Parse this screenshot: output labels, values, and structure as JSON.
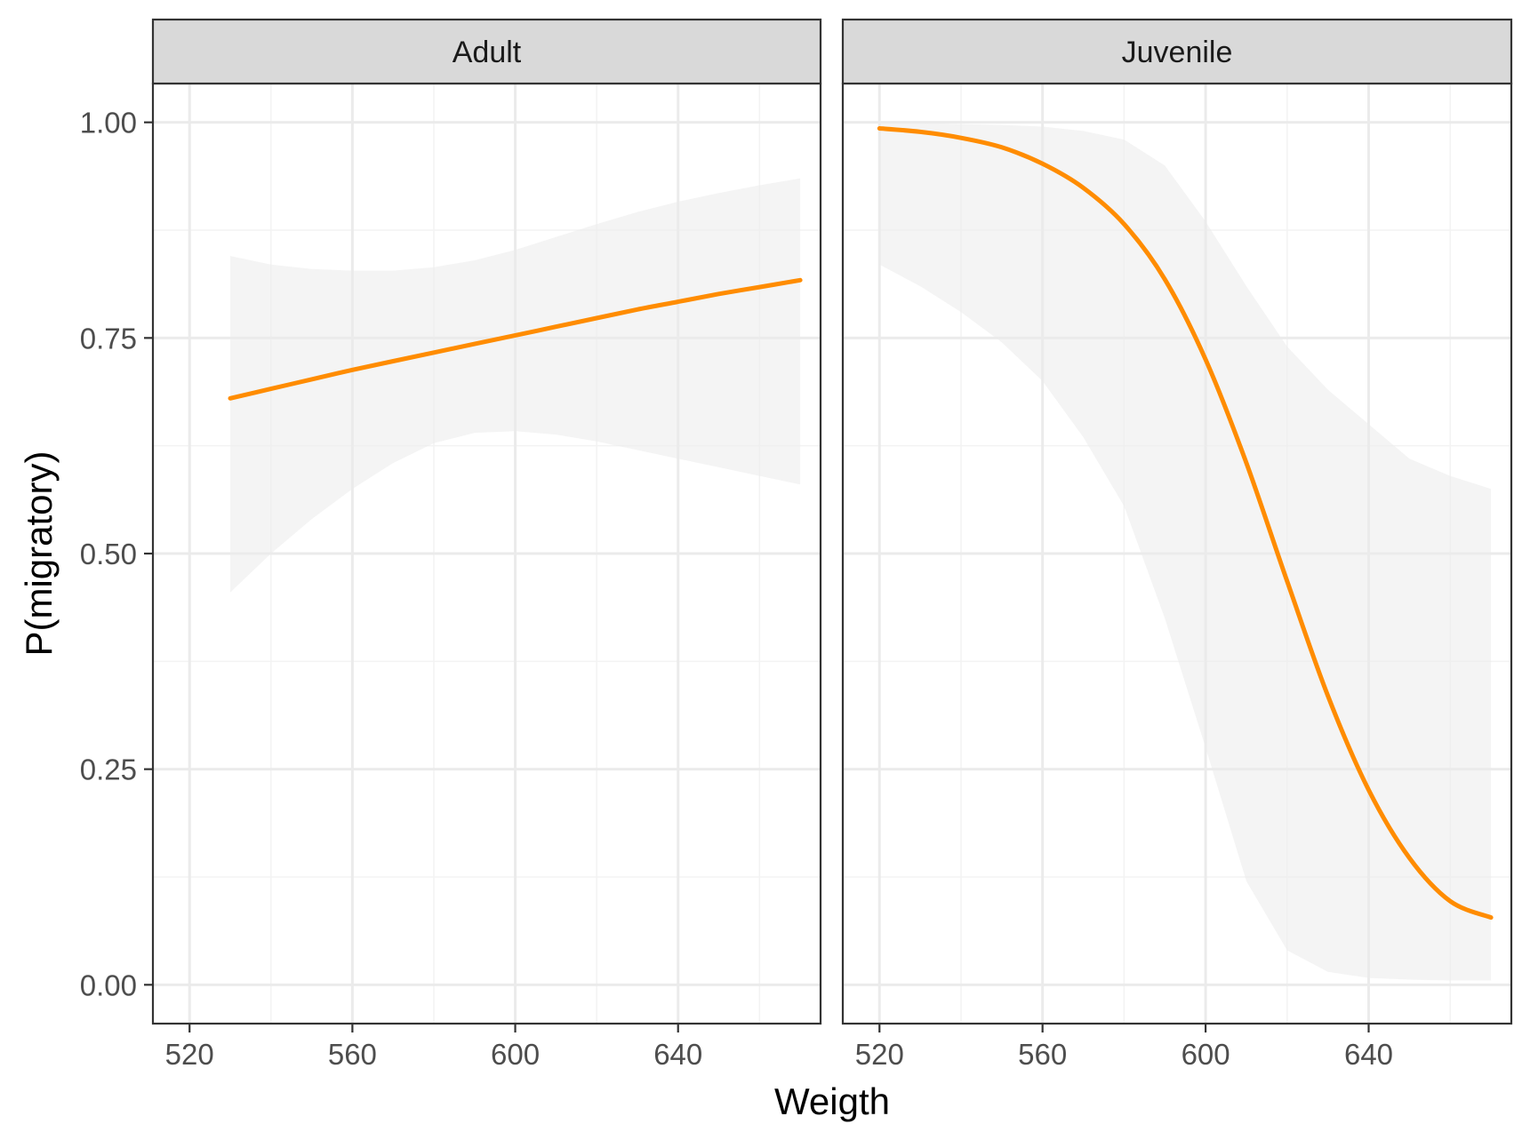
{
  "chart_data": {
    "type": "line",
    "xlabel": "Weigth",
    "ylabel": "P(migratory)",
    "xlim": [
      511,
      675
    ],
    "ylim": [
      -0.045,
      1.045
    ],
    "x_ticks": [
      520,
      560,
      600,
      640
    ],
    "y_ticks": [
      0.0,
      0.25,
      0.5,
      0.75,
      1.0
    ],
    "y_tick_labels": [
      "0.00",
      "0.25",
      "0.50",
      "0.75",
      "1.00"
    ],
    "grid": true,
    "legend": "none",
    "colors": {
      "line": "#ff8c00",
      "ribbon": "#ebebeb",
      "strip_bg": "#d9d9d9",
      "panel_border": "#333333",
      "grid_major": "#ebebeb",
      "grid_minor": "#f3f3f3",
      "axis_text": "#4d4d4d"
    },
    "panels": [
      {
        "label": "Adult",
        "x": [
          530,
          540,
          550,
          560,
          570,
          580,
          590,
          600,
          610,
          620,
          630,
          640,
          650,
          660,
          670
        ],
        "y": [
          0.68,
          0.691,
          0.702,
          0.713,
          0.723,
          0.733,
          0.743,
          0.753,
          0.763,
          0.773,
          0.783,
          0.792,
          0.801,
          0.809,
          0.817
        ],
        "ymin": [
          0.455,
          0.5,
          0.54,
          0.575,
          0.605,
          0.628,
          0.64,
          0.642,
          0.638,
          0.63,
          0.62,
          0.61,
          0.6,
          0.59,
          0.58
        ],
        "ymax": [
          0.845,
          0.835,
          0.83,
          0.828,
          0.828,
          0.832,
          0.84,
          0.852,
          0.867,
          0.882,
          0.896,
          0.908,
          0.918,
          0.927,
          0.935
        ]
      },
      {
        "label": "Juvenile",
        "x": [
          520,
          530,
          540,
          550,
          560,
          570,
          580,
          590,
          600,
          610,
          620,
          630,
          640,
          650,
          660,
          670
        ],
        "y": [
          0.993,
          0.989,
          0.982,
          0.971,
          0.952,
          0.924,
          0.882,
          0.818,
          0.725,
          0.605,
          0.468,
          0.335,
          0.226,
          0.147,
          0.097,
          0.078
        ],
        "ymin": [
          0.835,
          0.81,
          0.78,
          0.745,
          0.7,
          0.635,
          0.555,
          0.425,
          0.275,
          0.12,
          0.04,
          0.015,
          0.008,
          0.006,
          0.005,
          0.005
        ],
        "ymax": [
          0.999,
          0.999,
          0.998,
          0.997,
          0.995,
          0.99,
          0.98,
          0.95,
          0.885,
          0.81,
          0.74,
          0.69,
          0.65,
          0.61,
          0.59,
          0.575
        ]
      }
    ]
  }
}
